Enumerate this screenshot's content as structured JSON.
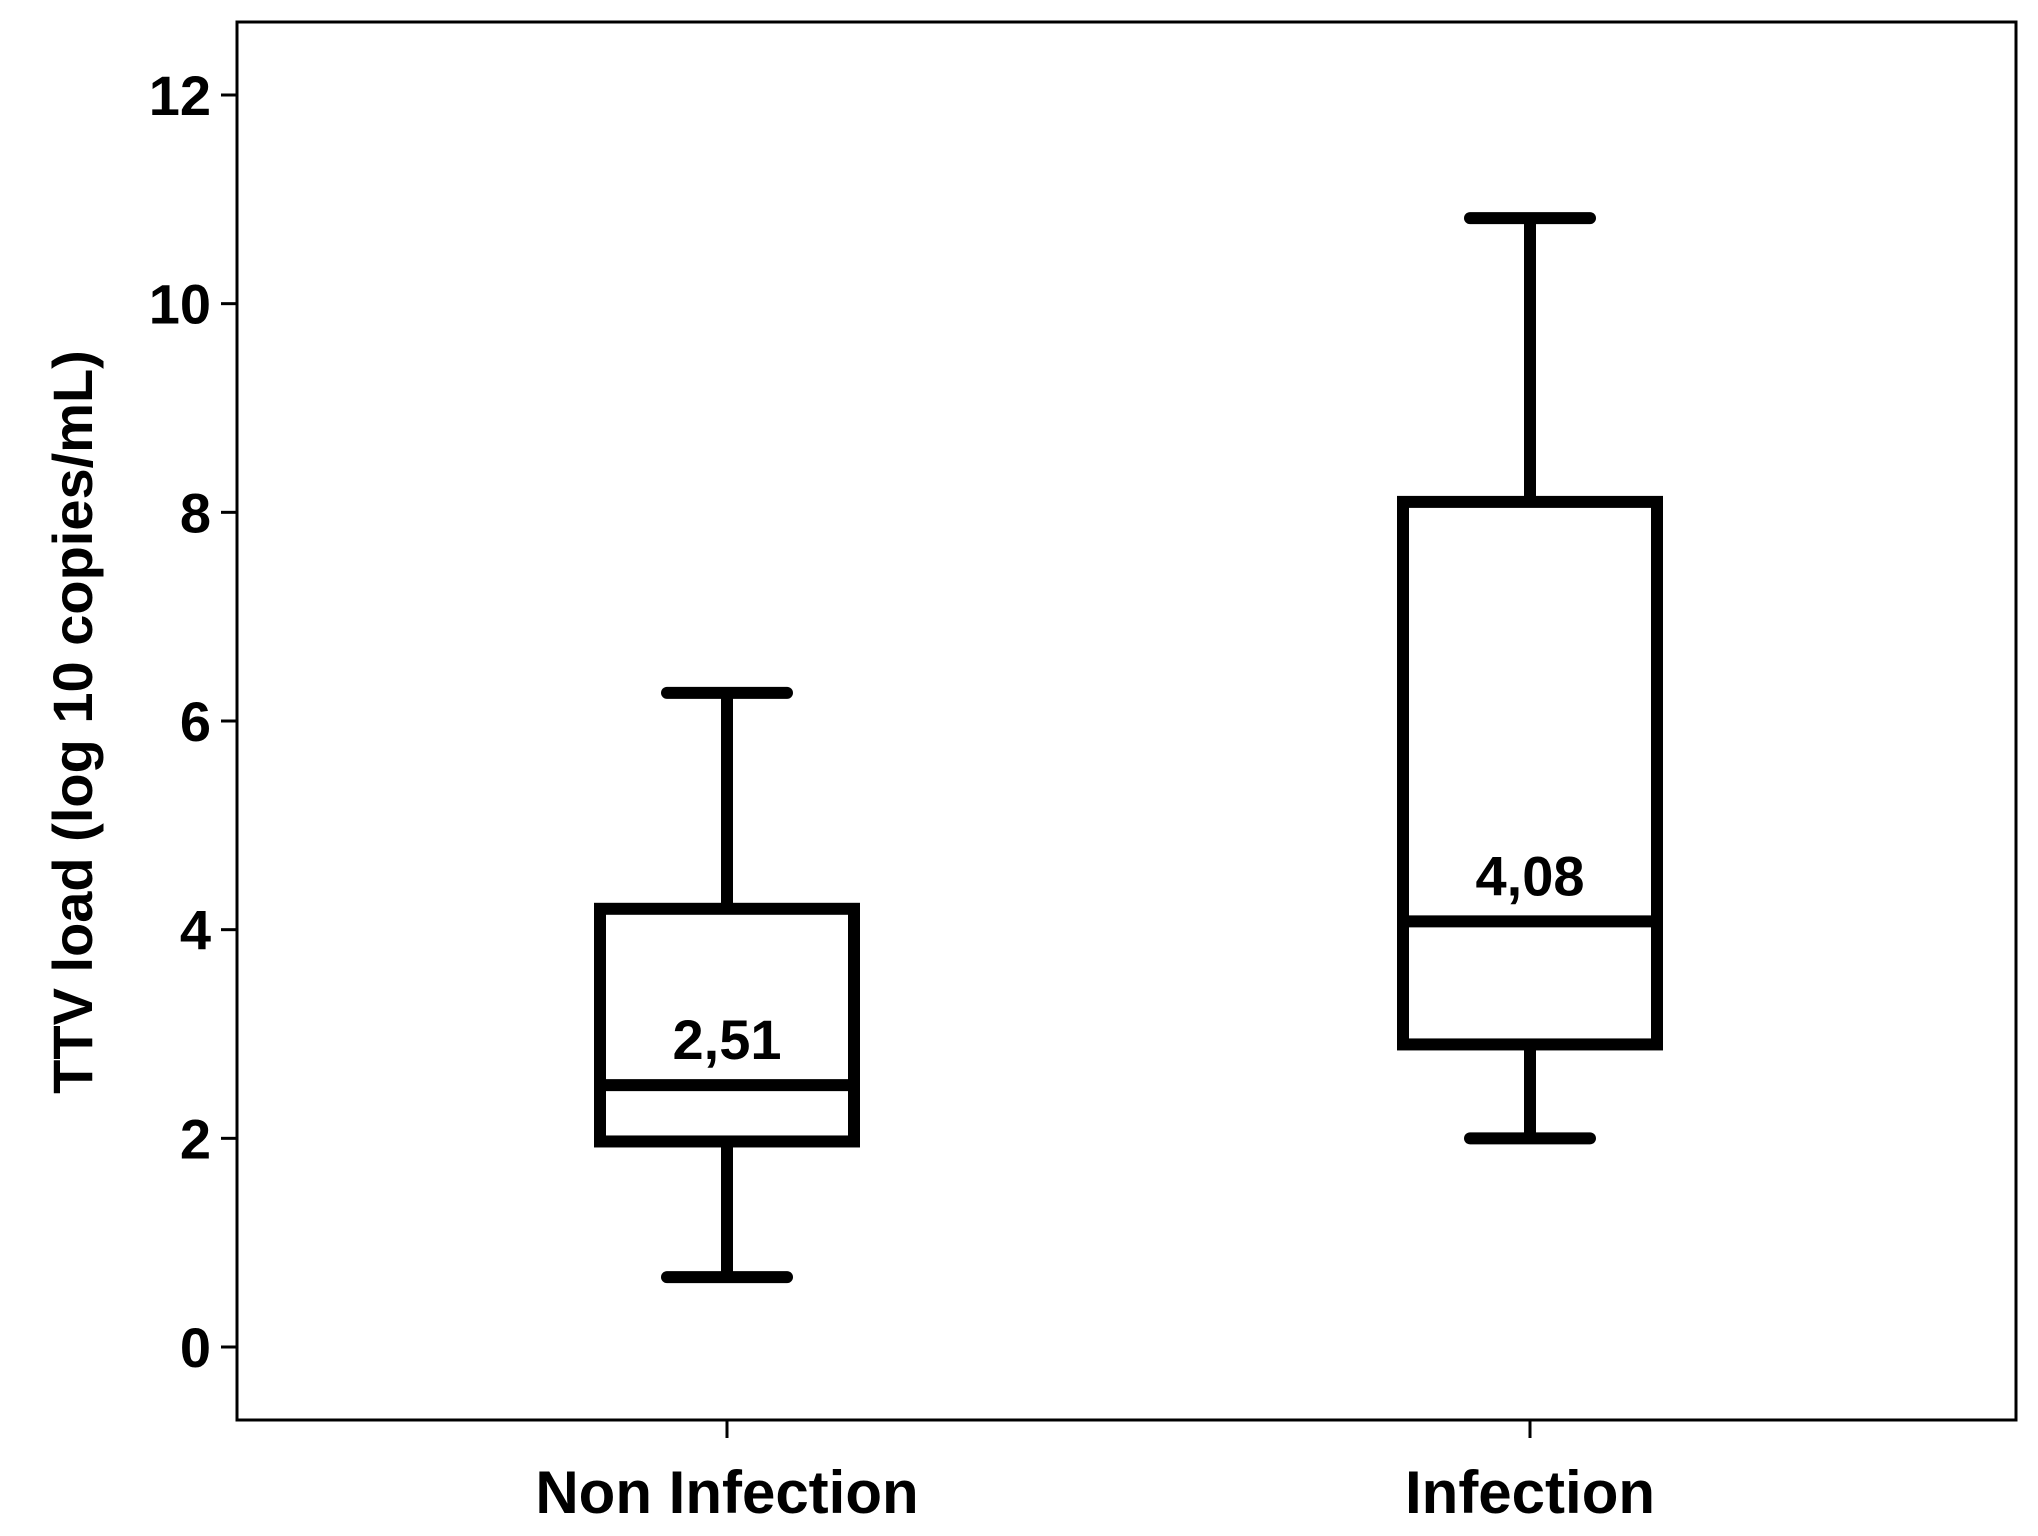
{
  "chart_data": {
    "type": "boxplot",
    "ylabel": "TTV load (log 10 copies/mL)",
    "xlabel": "",
    "ylim": [
      -0.7,
      12.7
    ],
    "yticks": [
      0,
      2,
      4,
      6,
      8,
      10,
      12
    ],
    "ytick_labels": [
      "0",
      "2",
      "4",
      "6",
      "8",
      "10",
      "12"
    ],
    "categories": [
      "Non Infection",
      "Infection"
    ],
    "boxes": [
      {
        "category": "Non Infection",
        "min": 0.67,
        "q1": 1.97,
        "median": 2.51,
        "q3": 4.2,
        "max": 6.27,
        "median_label": "2,51"
      },
      {
        "category": "Infection",
        "min": 2.0,
        "q1": 2.9,
        "median": 4.08,
        "q3": 8.1,
        "max": 10.82,
        "median_label": "4,08"
      }
    ],
    "grid": false,
    "legend": "none"
  }
}
